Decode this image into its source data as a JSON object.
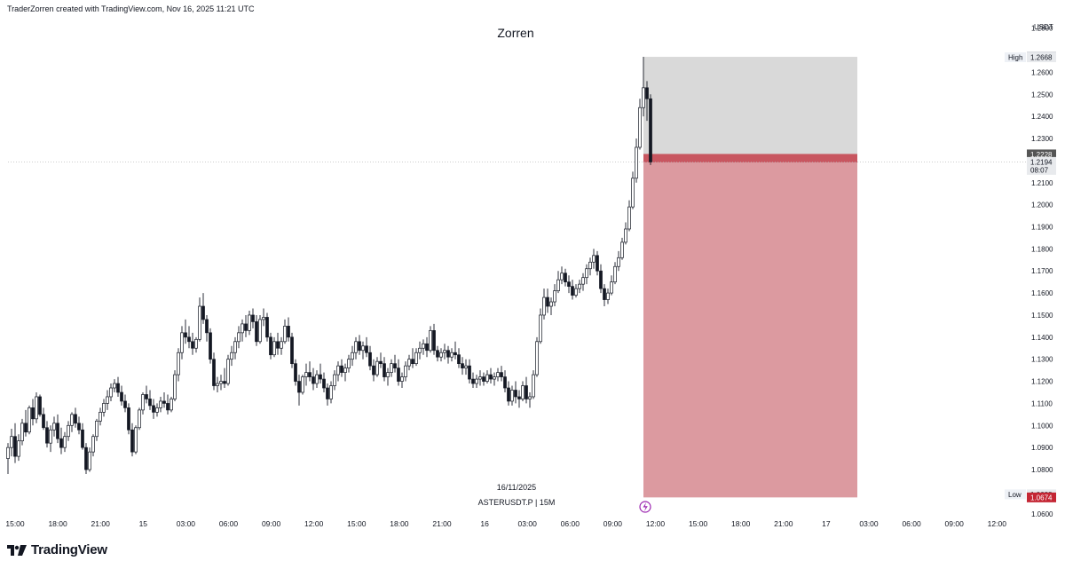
{
  "header": {
    "credit": "TraderZorren created with TradingView.com, Nov 16, 2025 11:21 UTC"
  },
  "brand": {
    "name": "TradingView",
    "logo_icon": "tradingview-logo-icon"
  },
  "colors": {
    "candle": "#131722",
    "stop_zone": "#d9d9d9",
    "target_zone": "#dc9aa0",
    "entry_band": "#c85660",
    "low_badge": "#c42634",
    "price_badge": "#555555",
    "lightning": "#9c27b0"
  },
  "chart_data": {
    "type": "candlestick",
    "title": "Zorren",
    "symbol_line": "ASTERUSDT.P | 15M",
    "date_label": "16/11/2025",
    "y_unit": "USDT",
    "ylim": [
      1.0595,
      1.2835
    ],
    "y_ticks": [
      "1.2800",
      "1.2600",
      "1.2500",
      "1.2400",
      "1.2300",
      "1.2100",
      "1.2000",
      "1.1900",
      "1.1800",
      "1.1700",
      "1.1600",
      "1.1500",
      "1.1400",
      "1.1300",
      "1.1200",
      "1.1100",
      "1.1000",
      "1.0900",
      "1.0800",
      "1.0600"
    ],
    "x_ticks": [
      "15:00",
      "18:00",
      "21:00",
      "15",
      "03:00",
      "06:00",
      "09:00",
      "12:00",
      "15:00",
      "18:00",
      "21:00",
      "16",
      "03:00",
      "06:00",
      "09:00",
      "12:00",
      "15:00",
      "18:00",
      "21:00",
      "17",
      "03:00",
      "06:00",
      "09:00",
      "12:00"
    ],
    "x_range": [
      "Nov 14 15:00",
      "Nov 17 12:00"
    ],
    "price_markers": [
      {
        "price": 1.267,
        "label": "1.2670",
        "style": "gray"
      },
      {
        "price": 1.2668,
        "label": "1.2668",
        "tag": "High",
        "style": "light"
      },
      {
        "price": 1.2228,
        "label": "1.2228",
        "style": "dark"
      },
      {
        "price": 1.2194,
        "label": "1.2194",
        "sub": "08:07",
        "style": "light"
      },
      {
        "price": 1.0688,
        "label": "1.0688",
        "tag": "Low",
        "style": "light"
      },
      {
        "price": 1.0674,
        "label": "1.0674",
        "style": "red"
      }
    ],
    "position": {
      "type": "short",
      "entry": 1.2194,
      "stop": 1.267,
      "target": 1.0674,
      "start_bar": 180,
      "end_bar": 240
    },
    "ohlc": [
      [
        1.085,
        1.092,
        1.078,
        1.09
      ],
      [
        1.09,
        1.0985,
        1.086,
        1.095
      ],
      [
        1.095,
        1.101,
        1.083,
        1.086
      ],
      [
        1.086,
        1.096,
        1.084,
        1.093
      ],
      [
        1.093,
        1.103,
        1.091,
        1.101
      ],
      [
        1.101,
        1.107,
        1.095,
        1.097
      ],
      [
        1.097,
        1.109,
        1.096,
        1.108
      ],
      [
        1.108,
        1.112,
        1.1,
        1.103
      ],
      [
        1.103,
        1.115,
        1.101,
        1.113
      ],
      [
        1.113,
        1.114,
        1.104,
        1.105
      ],
      [
        1.105,
        1.108,
        1.098,
        1.099
      ],
      [
        1.099,
        1.102,
        1.09,
        1.092
      ],
      [
        1.092,
        1.1,
        1.088,
        1.098
      ],
      [
        1.098,
        1.104,
        1.095,
        1.101
      ],
      [
        1.101,
        1.105,
        1.092,
        1.094
      ],
      [
        1.094,
        1.099,
        1.087,
        1.09
      ],
      [
        1.09,
        1.097,
        1.088,
        1.095
      ],
      [
        1.095,
        1.102,
        1.093,
        1.1
      ],
      [
        1.1,
        1.106,
        1.097,
        1.105
      ],
      [
        1.105,
        1.108,
        1.099,
        1.101
      ],
      [
        1.101,
        1.104,
        1.096,
        1.098
      ],
      [
        1.098,
        1.101,
        1.089,
        1.09
      ],
      [
        1.09,
        1.092,
        1.078,
        1.08
      ],
      [
        1.08,
        1.09,
        1.079,
        1.088
      ],
      [
        1.088,
        1.096,
        1.086,
        1.095
      ],
      [
        1.095,
        1.103,
        1.093,
        1.102
      ],
      [
        1.102,
        1.108,
        1.1,
        1.106
      ],
      [
        1.106,
        1.112,
        1.104,
        1.11
      ],
      [
        1.11,
        1.116,
        1.107,
        1.113
      ],
      [
        1.113,
        1.119,
        1.111,
        1.117
      ],
      [
        1.117,
        1.121,
        1.115,
        1.119
      ],
      [
        1.119,
        1.122,
        1.113,
        1.115
      ],
      [
        1.115,
        1.118,
        1.109,
        1.111
      ],
      [
        1.111,
        1.114,
        1.106,
        1.108
      ],
      [
        1.108,
        1.11,
        1.096,
        1.098
      ],
      [
        1.098,
        1.101,
        1.086,
        1.088
      ],
      [
        1.088,
        1.1,
        1.087,
        1.099
      ],
      [
        1.099,
        1.108,
        1.098,
        1.107
      ],
      [
        1.107,
        1.115,
        1.105,
        1.114
      ],
      [
        1.114,
        1.118,
        1.11,
        1.112
      ],
      [
        1.112,
        1.116,
        1.107,
        1.109
      ],
      [
        1.109,
        1.112,
        1.103,
        1.106
      ],
      [
        1.106,
        1.11,
        1.104,
        1.108
      ],
      [
        1.108,
        1.113,
        1.106,
        1.111
      ],
      [
        1.111,
        1.115,
        1.108,
        1.11
      ],
      [
        1.11,
        1.114,
        1.105,
        1.107
      ],
      [
        1.107,
        1.113,
        1.106,
        1.112
      ],
      [
        1.112,
        1.125,
        1.111,
        1.123
      ],
      [
        1.123,
        1.135,
        1.12,
        1.133
      ],
      [
        1.133,
        1.145,
        1.13,
        1.142
      ],
      [
        1.142,
        1.148,
        1.137,
        1.14
      ],
      [
        1.14,
        1.145,
        1.135,
        1.138
      ],
      [
        1.138,
        1.142,
        1.132,
        1.135
      ],
      [
        1.135,
        1.14,
        1.133,
        1.139
      ],
      [
        1.139,
        1.158,
        1.138,
        1.154
      ],
      [
        1.154,
        1.16,
        1.146,
        1.148
      ],
      [
        1.148,
        1.15,
        1.138,
        1.142
      ],
      [
        1.142,
        1.144,
        1.128,
        1.13
      ],
      [
        1.13,
        1.133,
        1.116,
        1.118
      ],
      [
        1.118,
        1.122,
        1.115,
        1.119
      ],
      [
        1.119,
        1.123,
        1.116,
        1.12
      ],
      [
        1.12,
        1.126,
        1.117,
        1.119
      ],
      [
        1.119,
        1.132,
        1.118,
        1.13
      ],
      [
        1.13,
        1.136,
        1.127,
        1.133
      ],
      [
        1.133,
        1.14,
        1.13,
        1.138
      ],
      [
        1.138,
        1.145,
        1.135,
        1.142
      ],
      [
        1.142,
        1.148,
        1.138,
        1.146
      ],
      [
        1.146,
        1.15,
        1.14,
        1.143
      ],
      [
        1.143,
        1.152,
        1.141,
        1.15
      ],
      [
        1.15,
        1.153,
        1.144,
        1.147
      ],
      [
        1.147,
        1.15,
        1.136,
        1.138
      ],
      [
        1.138,
        1.15,
        1.137,
        1.148
      ],
      [
        1.148,
        1.153,
        1.145,
        1.149
      ],
      [
        1.149,
        1.151,
        1.138,
        1.14
      ],
      [
        1.14,
        1.142,
        1.13,
        1.132
      ],
      [
        1.132,
        1.14,
        1.131,
        1.138
      ],
      [
        1.138,
        1.142,
        1.132,
        1.135
      ],
      [
        1.135,
        1.14,
        1.132,
        1.138
      ],
      [
        1.138,
        1.148,
        1.137,
        1.145
      ],
      [
        1.145,
        1.149,
        1.138,
        1.14
      ],
      [
        1.14,
        1.142,
        1.126,
        1.128
      ],
      [
        1.128,
        1.13,
        1.118,
        1.12
      ],
      [
        1.12,
        1.123,
        1.109,
        1.115
      ],
      [
        1.115,
        1.123,
        1.114,
        1.122
      ],
      [
        1.122,
        1.128,
        1.118,
        1.124
      ],
      [
        1.124,
        1.129,
        1.12,
        1.122
      ],
      [
        1.122,
        1.126,
        1.116,
        1.119
      ],
      [
        1.119,
        1.125,
        1.117,
        1.123
      ],
      [
        1.123,
        1.128,
        1.119,
        1.121
      ],
      [
        1.121,
        1.124,
        1.115,
        1.117
      ],
      [
        1.117,
        1.119,
        1.109,
        1.112
      ],
      [
        1.112,
        1.12,
        1.11,
        1.118
      ],
      [
        1.118,
        1.125,
        1.116,
        1.123
      ],
      [
        1.123,
        1.129,
        1.12,
        1.127
      ],
      [
        1.127,
        1.13,
        1.122,
        1.124
      ],
      [
        1.124,
        1.128,
        1.12,
        1.126
      ],
      [
        1.126,
        1.132,
        1.124,
        1.13
      ],
      [
        1.13,
        1.136,
        1.127,
        1.133
      ],
      [
        1.133,
        1.14,
        1.13,
        1.138
      ],
      [
        1.138,
        1.141,
        1.132,
        1.134
      ],
      [
        1.134,
        1.138,
        1.13,
        1.136
      ],
      [
        1.136,
        1.14,
        1.131,
        1.133
      ],
      [
        1.133,
        1.136,
        1.125,
        1.127
      ],
      [
        1.127,
        1.13,
        1.12,
        1.123
      ],
      [
        1.123,
        1.131,
        1.122,
        1.129
      ],
      [
        1.129,
        1.133,
        1.126,
        1.128
      ],
      [
        1.128,
        1.131,
        1.12,
        1.122
      ],
      [
        1.122,
        1.126,
        1.118,
        1.124
      ],
      [
        1.124,
        1.13,
        1.122,
        1.128
      ],
      [
        1.128,
        1.132,
        1.124,
        1.126
      ],
      [
        1.126,
        1.13,
        1.118,
        1.12
      ],
      [
        1.12,
        1.124,
        1.117,
        1.122
      ],
      [
        1.122,
        1.129,
        1.12,
        1.127
      ],
      [
        1.127,
        1.132,
        1.125,
        1.13
      ],
      [
        1.13,
        1.135,
        1.126,
        1.128
      ],
      [
        1.128,
        1.135,
        1.127,
        1.133
      ],
      [
        1.133,
        1.138,
        1.13,
        1.135
      ],
      [
        1.135,
        1.139,
        1.132,
        1.137
      ],
      [
        1.137,
        1.14,
        1.131,
        1.134
      ],
      [
        1.134,
        1.145,
        1.133,
        1.143
      ],
      [
        1.143,
        1.146,
        1.132,
        1.134
      ],
      [
        1.134,
        1.136,
        1.129,
        1.131
      ],
      [
        1.131,
        1.135,
        1.129,
        1.133
      ],
      [
        1.133,
        1.137,
        1.13,
        1.134
      ],
      [
        1.134,
        1.136,
        1.128,
        1.131
      ],
      [
        1.131,
        1.135,
        1.129,
        1.133
      ],
      [
        1.133,
        1.138,
        1.13,
        1.132
      ],
      [
        1.132,
        1.135,
        1.126,
        1.128
      ],
      [
        1.128,
        1.131,
        1.123,
        1.126
      ],
      [
        1.126,
        1.13,
        1.123,
        1.127
      ],
      [
        1.127,
        1.13,
        1.119,
        1.121
      ],
      [
        1.121,
        1.124,
        1.117,
        1.119
      ],
      [
        1.119,
        1.123,
        1.117,
        1.121
      ],
      [
        1.121,
        1.125,
        1.118,
        1.122
      ],
      [
        1.122,
        1.124,
        1.118,
        1.12
      ],
      [
        1.12,
        1.125,
        1.119,
        1.123
      ],
      [
        1.123,
        1.126,
        1.119,
        1.121
      ],
      [
        1.121,
        1.124,
        1.118,
        1.122
      ],
      [
        1.122,
        1.126,
        1.12,
        1.124
      ],
      [
        1.124,
        1.127,
        1.12,
        1.122
      ],
      [
        1.122,
        1.125,
        1.115,
        1.117
      ],
      [
        1.117,
        1.12,
        1.109,
        1.111
      ],
      [
        1.111,
        1.118,
        1.109,
        1.116
      ],
      [
        1.116,
        1.12,
        1.11,
        1.113
      ],
      [
        1.113,
        1.116,
        1.108,
        1.112
      ],
      [
        1.112,
        1.12,
        1.111,
        1.118
      ],
      [
        1.118,
        1.122,
        1.11,
        1.112
      ],
      [
        1.112,
        1.115,
        1.108,
        1.113
      ],
      [
        1.113,
        1.125,
        1.112,
        1.123
      ],
      [
        1.123,
        1.14,
        1.122,
        1.138
      ],
      [
        1.138,
        1.153,
        1.137,
        1.15
      ],
      [
        1.15,
        1.162,
        1.148,
        1.158
      ],
      [
        1.158,
        1.162,
        1.151,
        1.154
      ],
      [
        1.154,
        1.158,
        1.15,
        1.156
      ],
      [
        1.156,
        1.164,
        1.154,
        1.161
      ],
      [
        1.161,
        1.17,
        1.16,
        1.166
      ],
      [
        1.166,
        1.172,
        1.164,
        1.169
      ],
      [
        1.169,
        1.171,
        1.163,
        1.165
      ],
      [
        1.165,
        1.168,
        1.16,
        1.163
      ],
      [
        1.163,
        1.166,
        1.157,
        1.159
      ],
      [
        1.159,
        1.164,
        1.158,
        1.162
      ],
      [
        1.162,
        1.166,
        1.16,
        1.164
      ],
      [
        1.164,
        1.169,
        1.161,
        1.167
      ],
      [
        1.167,
        1.173,
        1.164,
        1.171
      ],
      [
        1.171,
        1.176,
        1.168,
        1.174
      ],
      [
        1.174,
        1.18,
        1.171,
        1.177
      ],
      [
        1.177,
        1.179,
        1.168,
        1.17
      ],
      [
        1.17,
        1.173,
        1.16,
        1.162
      ],
      [
        1.162,
        1.164,
        1.154,
        1.157
      ],
      [
        1.157,
        1.162,
        1.155,
        1.16
      ],
      [
        1.16,
        1.168,
        1.159,
        1.165
      ],
      [
        1.165,
        1.174,
        1.164,
        1.172
      ],
      [
        1.172,
        1.179,
        1.17,
        1.176
      ],
      [
        1.176,
        1.185,
        1.175,
        1.183
      ],
      [
        1.183,
        1.192,
        1.182,
        1.189
      ],
      [
        1.189,
        1.202,
        1.188,
        1.199
      ],
      [
        1.199,
        1.215,
        1.198,
        1.212
      ],
      [
        1.212,
        1.23,
        1.21,
        1.226
      ],
      [
        1.226,
        1.248,
        1.225,
        1.244
      ],
      [
        1.244,
        1.267,
        1.24,
        1.253
      ],
      [
        1.253,
        1.256,
        1.238,
        1.248
      ],
      [
        1.248,
        1.25,
        1.218,
        1.2194
      ]
    ]
  }
}
